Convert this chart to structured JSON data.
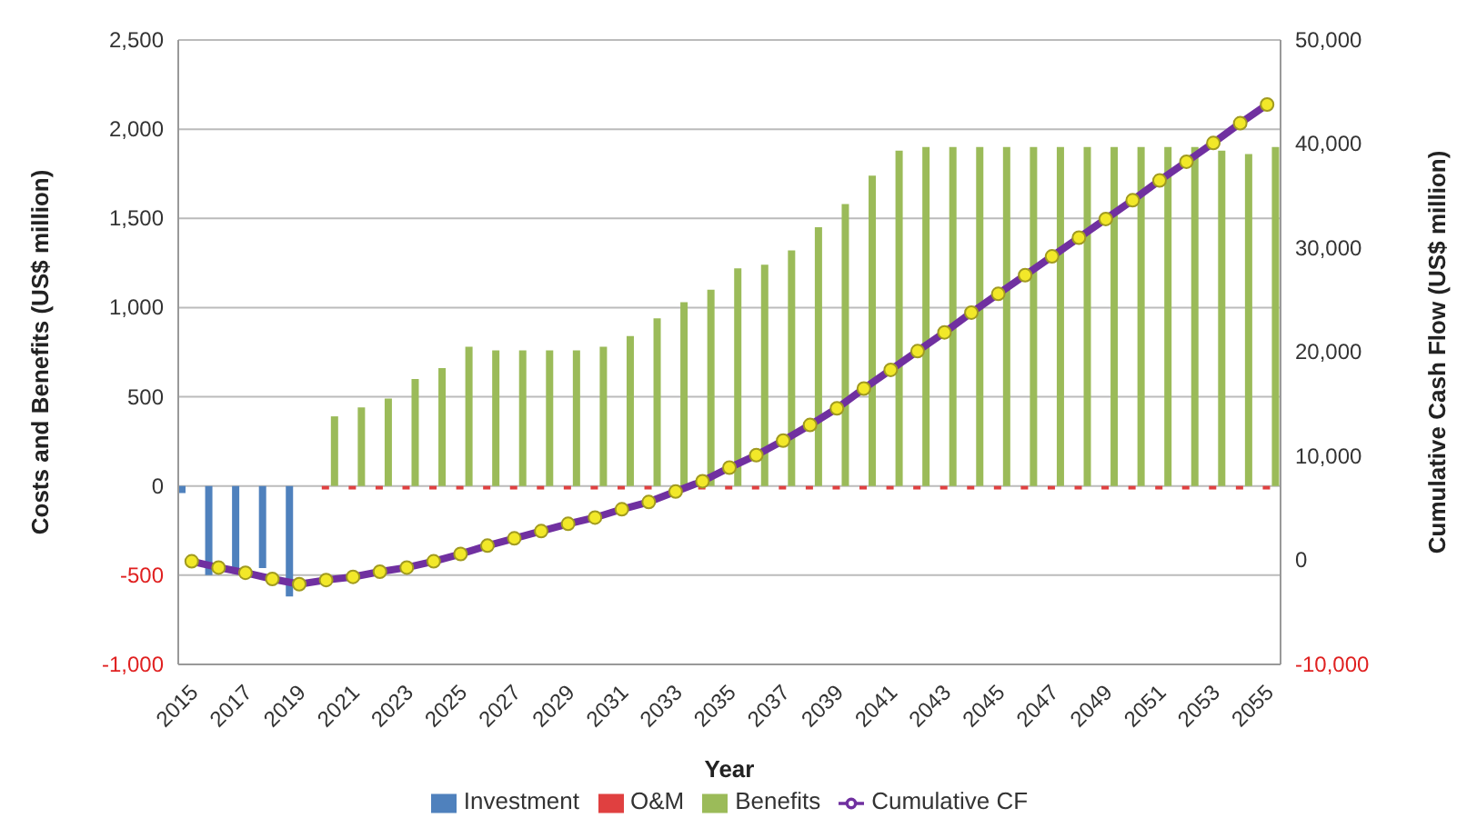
{
  "chart_data": {
    "type": "bar",
    "xlabel": "Year",
    "ylabel": "Costs and Benefits (US$ million)",
    "y2label": "Cumulative Cash Flow (US$ million)",
    "categories": [
      "2015",
      null,
      "2017",
      null,
      "2019",
      null,
      "2021",
      null,
      "2023",
      null,
      "2025",
      null,
      "2027",
      null,
      "2029",
      null,
      "2031",
      null,
      "2033",
      null,
      "2035",
      null,
      "2037",
      null,
      "2039",
      null,
      "2041",
      null,
      "2043",
      null,
      "2045",
      null,
      "2047",
      null,
      "2049",
      null,
      "2051",
      null,
      "2053",
      null,
      "2055"
    ],
    "ylim": [
      -1000,
      2500
    ],
    "yticks": [
      {
        "value": -1000,
        "label": "-1,000"
      },
      -500,
      0,
      500,
      {
        "value": 1000,
        "label": "1,000"
      },
      {
        "value": 1500,
        "label": "1,500"
      },
      {
        "value": 2000,
        "label": "2,000"
      },
      {
        "value": 2500,
        "label": "2,500"
      }
    ],
    "y2lim": [
      -10000,
      50000
    ],
    "y2ticks": [
      {
        "value": -10000,
        "label": "-10,000"
      },
      0,
      {
        "value": 10000,
        "label": "10,000"
      },
      {
        "value": 20000,
        "label": "20,000"
      },
      {
        "value": 30000,
        "label": "30,000"
      },
      {
        "value": 40000,
        "label": "40,000"
      },
      {
        "value": 50000,
        "label": "50,000"
      }
    ],
    "grid": "y",
    "legend": "bottom",
    "marker": "circle",
    "series": [
      {
        "name": "Investment",
        "color": "#4f81bd",
        "values": [
          -40,
          -500,
          -470,
          -460,
          -620,
          null,
          null,
          null,
          null,
          null,
          null,
          null,
          null,
          null,
          null,
          null,
          null,
          null,
          null,
          null,
          null,
          null,
          null,
          null,
          null,
          null,
          null,
          null,
          null,
          null,
          null,
          null,
          null,
          null,
          null,
          null,
          null,
          null,
          null,
          null,
          null
        ]
      },
      {
        "name": "O&M",
        "color": "#e04040",
        "values": [
          null,
          null,
          null,
          null,
          null,
          -20,
          -20,
          -20,
          -20,
          -20,
          -20,
          -20,
          -20,
          -20,
          -20,
          -20,
          -20,
          -20,
          null,
          -20,
          -20,
          -20,
          -20,
          -20,
          -20,
          -20,
          -20,
          -20,
          -20,
          -20,
          -20,
          -20,
          -20,
          -20,
          -20,
          -20,
          -20,
          -20,
          -20,
          -20,
          -20
        ]
      },
      {
        "name": "Benefits",
        "color": "#9bbb59",
        "values": [
          null,
          null,
          null,
          null,
          null,
          390,
          440,
          490,
          600,
          660,
          780,
          760,
          760,
          760,
          760,
          780,
          840,
          940,
          1030,
          1100,
          1220,
          1240,
          1320,
          1450,
          1580,
          1740,
          1880,
          1900,
          1900,
          1900,
          1900,
          1900,
          1900,
          1900,
          1900,
          1900,
          1900,
          1900,
          1880,
          1860,
          1900
        ]
      },
      {
        "name": "Cumulative CF",
        "type": "line",
        "axis": "y2",
        "color": "#7030a0",
        "values": [
          -100,
          -700,
          -1200,
          -1800,
          -2300,
          -1900,
          -1600,
          -1100,
          -700,
          -100,
          600,
          1400,
          2100,
          2800,
          3500,
          4100,
          4900,
          5600,
          6600,
          7600,
          8900,
          10100,
          11500,
          13000,
          14600,
          16500,
          18300,
          20100,
          21900,
          23800,
          25600,
          27400,
          29200,
          31000,
          32800,
          34600,
          36500,
          38300,
          40100,
          42000,
          43800
        ]
      }
    ]
  }
}
